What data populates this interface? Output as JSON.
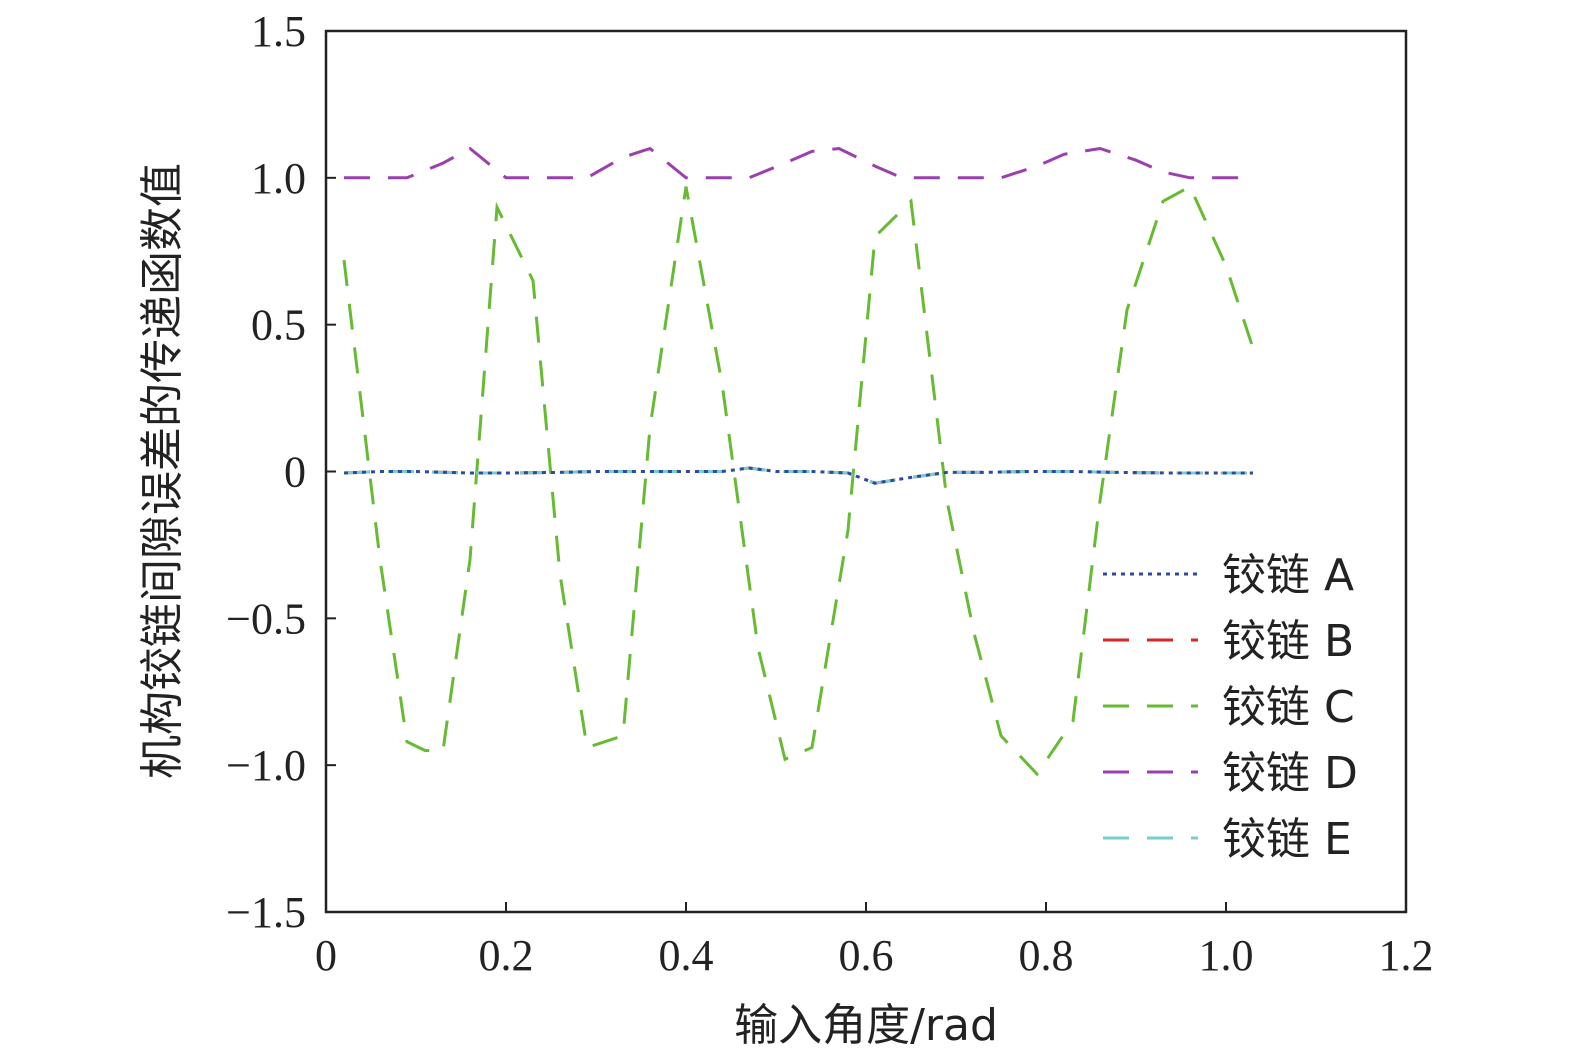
{
  "chart_data": {
    "type": "line",
    "xlabel": "输入角度/rad",
    "ylabel": "机构铰链间隙误差的传递函数值",
    "xlim": [
      0,
      1.2
    ],
    "ylim": [
      -1.5,
      1.5
    ],
    "x_ticks": [
      "0",
      "0.2",
      "0.4",
      "0.6",
      "0.8",
      "1.0",
      "1.2"
    ],
    "y_ticks": [
      "−1.5",
      "−1.0",
      "−0.5",
      "0",
      "0.5",
      "1.0",
      "1.5"
    ],
    "x_tick_values": [
      0,
      0.2,
      0.4,
      0.6,
      0.8,
      1.0,
      1.2
    ],
    "y_tick_values": [
      -1.5,
      -1.0,
      -0.5,
      0,
      0.5,
      1.0,
      1.5
    ],
    "grid": false,
    "legend_position": "lower-right",
    "series": [
      {
        "name": "铰链 A",
        "color": "#2e4a9e",
        "dash": "dotted",
        "x": [
          0.02,
          0.06,
          0.1,
          0.16,
          0.2,
          0.26,
          0.3,
          0.36,
          0.4,
          0.44,
          0.47,
          0.5,
          0.54,
          0.58,
          0.61,
          0.65,
          0.69,
          0.73,
          0.78,
          0.83,
          0.88,
          0.94,
          0.99,
          1.03
        ],
        "y": [
          -0.005,
          0.0,
          0.0,
          -0.005,
          -0.005,
          -0.003,
          0.0,
          0.0,
          0.0,
          0.0,
          0.012,
          0.0,
          0.0,
          -0.005,
          -0.04,
          -0.02,
          -0.003,
          -0.003,
          0.0,
          0.0,
          -0.003,
          -0.005,
          -0.005,
          -0.005
        ]
      },
      {
        "name": "铰链 B",
        "color": "#d62728",
        "dash": "dashed",
        "x": [
          0.02,
          0.06,
          0.1,
          0.16,
          0.2,
          0.26,
          0.3,
          0.36,
          0.4,
          0.44,
          0.47,
          0.5,
          0.54,
          0.58,
          0.61,
          0.65,
          0.69,
          0.73,
          0.78,
          0.83,
          0.88,
          0.94,
          0.99,
          1.03
        ],
        "y": [
          -0.005,
          0.0,
          0.0,
          -0.005,
          -0.005,
          -0.003,
          0.0,
          0.0,
          0.0,
          0.0,
          0.012,
          0.0,
          0.0,
          -0.005,
          -0.04,
          -0.02,
          -0.003,
          -0.003,
          0.0,
          0.0,
          -0.003,
          -0.005,
          -0.005,
          -0.005
        ]
      },
      {
        "name": "铰链 C",
        "color": "#66bb33",
        "dash": "dashed",
        "x": [
          0.02,
          0.06,
          0.09,
          0.11,
          0.13,
          0.16,
          0.19,
          0.23,
          0.26,
          0.29,
          0.33,
          0.36,
          0.4,
          0.44,
          0.48,
          0.51,
          0.54,
          0.58,
          0.61,
          0.65,
          0.69,
          0.72,
          0.75,
          0.79,
          0.83,
          0.86,
          0.89,
          0.93,
          0.96,
          1.0,
          1.03
        ],
        "y": [
          0.72,
          -0.3,
          -0.92,
          -0.95,
          -0.95,
          -0.3,
          0.9,
          0.65,
          -0.35,
          -0.94,
          -0.9,
          0.15,
          0.97,
          0.3,
          -0.6,
          -0.98,
          -0.94,
          -0.2,
          0.8,
          0.92,
          -0.1,
          -0.55,
          -0.9,
          -1.03,
          -0.85,
          -0.1,
          0.55,
          0.92,
          0.97,
          0.7,
          0.42
        ]
      },
      {
        "name": "铰链 D",
        "color": "#9b3fae",
        "dash": "dashed",
        "x": [
          0.02,
          0.06,
          0.09,
          0.13,
          0.16,
          0.2,
          0.23,
          0.26,
          0.29,
          0.33,
          0.36,
          0.4,
          0.44,
          0.47,
          0.51,
          0.54,
          0.57,
          0.61,
          0.64,
          0.68,
          0.71,
          0.75,
          0.79,
          0.82,
          0.86,
          0.9,
          0.93,
          0.96,
          1.0,
          1.03
        ],
        "y": [
          1.0,
          1.0,
          1.0,
          1.05,
          1.1,
          1.0,
          1.0,
          1.0,
          1.0,
          1.07,
          1.1,
          1.0,
          1.0,
          1.0,
          1.05,
          1.09,
          1.1,
          1.04,
          1.0,
          1.0,
          1.0,
          1.0,
          1.04,
          1.08,
          1.1,
          1.06,
          1.02,
          1.0,
          1.0,
          1.0
        ]
      },
      {
        "name": "铰链 E",
        "color": "#76cece",
        "dash": "dashed",
        "x": [
          0.02,
          0.06,
          0.1,
          0.16,
          0.2,
          0.26,
          0.3,
          0.36,
          0.4,
          0.44,
          0.47,
          0.5,
          0.54,
          0.58,
          0.61,
          0.65,
          0.69,
          0.73,
          0.78,
          0.83,
          0.88,
          0.94,
          0.99,
          1.03
        ],
        "y": [
          -0.005,
          0.0,
          0.0,
          -0.005,
          -0.005,
          -0.003,
          0.0,
          0.0,
          0.0,
          0.0,
          0.012,
          0.0,
          0.0,
          -0.005,
          -0.04,
          -0.02,
          -0.003,
          -0.003,
          0.0,
          0.0,
          -0.003,
          -0.005,
          -0.005,
          -0.005
        ]
      }
    ]
  }
}
